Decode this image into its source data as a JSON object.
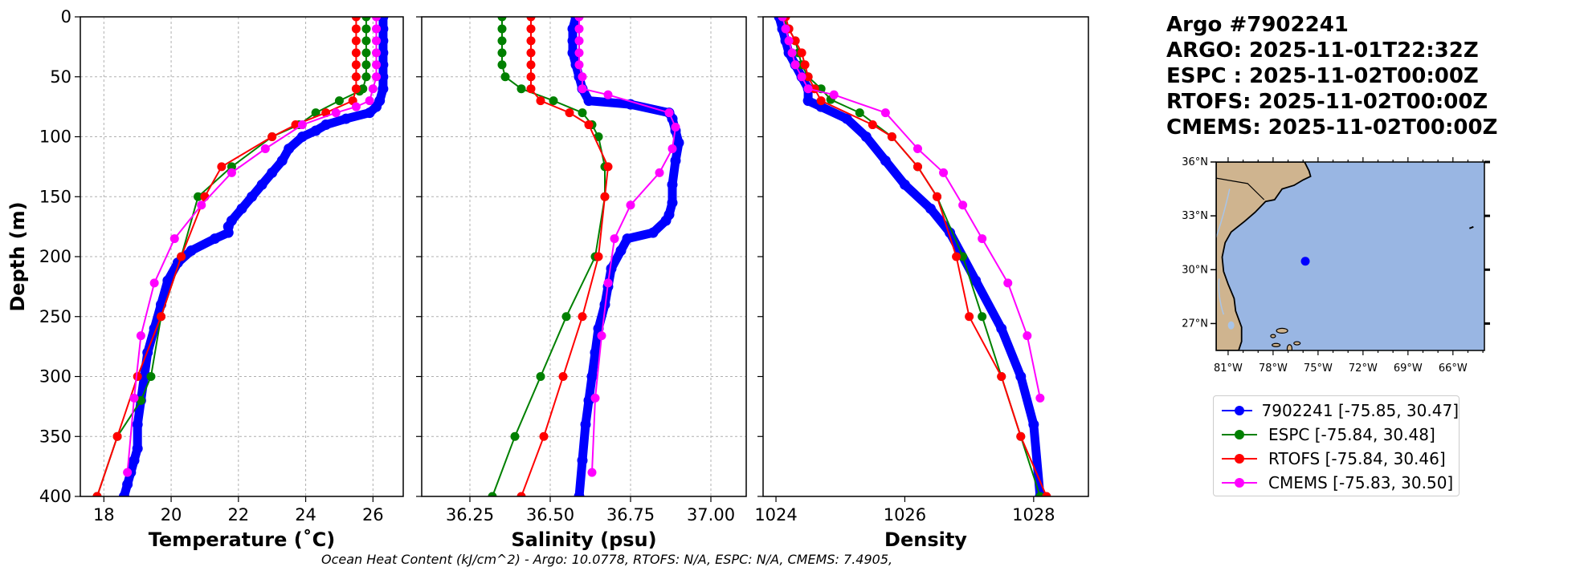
{
  "chart_data": [
    {
      "type": "line",
      "panel": "temperature",
      "xlabel": "Temperature (˚C)",
      "ylabel": "Depth (m)",
      "xlim": [
        17.3,
        26.9
      ],
      "ylim": [
        400,
        0
      ],
      "xticks": [
        18,
        20,
        22,
        24,
        26
      ],
      "yticks": [
        0,
        50,
        100,
        150,
        200,
        250,
        300,
        350,
        400
      ],
      "grid": true,
      "series": [
        {
          "name": "7902241 [-75.85, 30.47]",
          "color": "#0000ff",
          "x": [
            26.3,
            26.3,
            26.3,
            26.3,
            26.3,
            26.3,
            26.3,
            26.2,
            26.1,
            25.9,
            25.2,
            24.6,
            24.3,
            23.9,
            23.5,
            23.3,
            23.0,
            22.7,
            22.4,
            22.1,
            21.8,
            21.7,
            21.7,
            21.3,
            20.6,
            20.2,
            19.9,
            19.7,
            19.5,
            19.3,
            19.2,
            19.1,
            19.0,
            19.0,
            18.9,
            18.8,
            18.7,
            18.6
          ],
          "y": [
            0,
            10,
            20,
            30,
            40,
            50,
            60,
            70,
            75,
            80,
            85,
            90,
            95,
            100,
            110,
            120,
            130,
            140,
            150,
            160,
            170,
            175,
            180,
            185,
            195,
            205,
            220,
            240,
            260,
            280,
            300,
            320,
            340,
            360,
            370,
            380,
            390,
            400
          ]
        },
        {
          "name": "ESPC [-75.84, 30.48]",
          "color": "#008000",
          "x": [
            25.8,
            25.8,
            25.8,
            25.8,
            25.8,
            25.8,
            25.7,
            25.6,
            25.0,
            24.3,
            23.8,
            23.0,
            21.8,
            20.8,
            20.3,
            19.7,
            19.4,
            19.1,
            18.4,
            17.8
          ],
          "y": [
            0,
            10,
            20,
            30,
            40,
            50,
            60,
            62,
            70,
            80,
            90,
            100,
            125,
            150,
            200,
            250,
            300,
            320,
            350,
            400
          ]
        },
        {
          "name": "RTOFS [-75.84, 30.46]",
          "color": "#ff0000",
          "x": [
            25.5,
            25.5,
            25.5,
            25.5,
            25.5,
            25.5,
            25.5,
            25.4,
            24.6,
            23.7,
            23.0,
            21.5,
            21.0,
            20.3,
            19.7,
            19.0,
            18.4,
            17.8
          ],
          "y": [
            0,
            10,
            20,
            30,
            40,
            50,
            60,
            70,
            80,
            90,
            100,
            125,
            150,
            200,
            250,
            300,
            350,
            400
          ]
        },
        {
          "name": "CMEMS [-75.83, 30.50]",
          "color": "#ff00ff",
          "x": [
            26.1,
            26.1,
            26.1,
            26.1,
            26.1,
            26.1,
            26.0,
            25.9,
            25.5,
            24.9,
            23.9,
            22.8,
            21.8,
            20.9,
            20.1,
            19.5,
            19.1,
            18.9,
            18.7
          ],
          "y": [
            0,
            10,
            20,
            30,
            40,
            50,
            60,
            70,
            75,
            80,
            90,
            110,
            130,
            157,
            185,
            222,
            266,
            318,
            380
          ]
        }
      ]
    },
    {
      "type": "line",
      "panel": "salinity",
      "xlabel": "Salinity (psu)",
      "xlim": [
        36.1,
        37.11
      ],
      "ylim": [
        400,
        0
      ],
      "xticks": [
        "36.25",
        "36.50",
        "36.75",
        "37.00"
      ],
      "xtick_values": [
        36.25,
        36.5,
        36.75,
        37.0
      ],
      "grid": true,
      "series": [
        {
          "name": "7902241 [-75.85, 30.47]",
          "color": "#0000ff",
          "x": [
            36.58,
            36.57,
            36.57,
            36.57,
            36.58,
            36.59,
            36.6,
            36.62,
            36.75,
            36.87,
            36.88,
            36.89,
            36.9,
            36.89,
            36.88,
            36.88,
            36.87,
            36.86,
            36.82,
            36.74,
            36.72,
            36.69,
            36.68,
            36.67,
            36.65,
            36.64,
            36.63,
            36.62,
            36.61,
            36.6,
            36.59
          ],
          "y": [
            0,
            10,
            20,
            30,
            40,
            50,
            60,
            70,
            73,
            80,
            85,
            95,
            105,
            120,
            140,
            155,
            165,
            170,
            180,
            185,
            195,
            210,
            225,
            240,
            260,
            280,
            300,
            320,
            340,
            370,
            400
          ]
        },
        {
          "name": "ESPC [-75.84, 30.48]",
          "color": "#008000",
          "x": [
            36.35,
            36.35,
            36.35,
            36.35,
            36.35,
            36.36,
            36.41,
            36.51,
            36.6,
            36.63,
            36.65,
            36.67,
            36.67,
            36.64,
            36.55,
            36.47,
            36.39,
            36.32
          ],
          "y": [
            0,
            10,
            20,
            30,
            40,
            50,
            60,
            70,
            80,
            90,
            100,
            125,
            150,
            200,
            250,
            300,
            350,
            400
          ]
        },
        {
          "name": "RTOFS [-75.84, 30.46]",
          "color": "#ff0000",
          "x": [
            36.44,
            36.44,
            36.44,
            36.44,
            36.44,
            36.44,
            36.44,
            36.47,
            36.56,
            36.62,
            36.68,
            36.67,
            36.65,
            36.6,
            36.54,
            36.48,
            36.41
          ],
          "y": [
            0,
            10,
            20,
            30,
            40,
            50,
            60,
            70,
            80,
            90,
            125,
            150,
            200,
            250,
            300,
            350,
            400
          ]
        },
        {
          "name": "CMEMS [-75.83, 30.50]",
          "color": "#ff00ff",
          "x": [
            36.59,
            36.59,
            36.59,
            36.59,
            36.59,
            36.6,
            36.6,
            36.68,
            36.87,
            36.89,
            36.88,
            36.84,
            36.75,
            36.7,
            36.68,
            36.66,
            36.64,
            36.63
          ],
          "y": [
            0,
            10,
            20,
            30,
            40,
            50,
            60,
            65,
            80,
            92,
            110,
            130,
            157,
            185,
            222,
            266,
            318,
            380
          ]
        }
      ]
    },
    {
      "type": "line",
      "panel": "density",
      "xlabel": "Density",
      "xlim": [
        1023.8,
        1028.85
      ],
      "ylim": [
        400,
        0
      ],
      "xticks": [
        1024,
        1026,
        1028
      ],
      "grid": false,
      "series": [
        {
          "name": "7902241 [-75.85, 30.47]",
          "color": "#0000ff",
          "x": [
            1024.05,
            1024.1,
            1024.15,
            1024.2,
            1024.3,
            1024.4,
            1024.5,
            1024.5,
            1024.7,
            1025.1,
            1025.4,
            1025.7,
            1026.0,
            1026.4,
            1026.7,
            1027.1,
            1027.5,
            1027.8,
            1028.0,
            1028.1
          ],
          "y": [
            0,
            10,
            20,
            30,
            40,
            50,
            60,
            70,
            75,
            85,
            100,
            120,
            140,
            160,
            180,
            220,
            260,
            300,
            340,
            400
          ]
        },
        {
          "name": "ESPC [-75.84, 30.48]",
          "color": "#008000",
          "x": [
            1024.1,
            1024.2,
            1024.3,
            1024.35,
            1024.4,
            1024.5,
            1024.7,
            1024.85,
            1025.3,
            1025.8,
            1026.2,
            1026.5,
            1026.9,
            1027.2,
            1027.5,
            1027.8,
            1028.1
          ],
          "y": [
            0,
            10,
            20,
            30,
            40,
            50,
            60,
            69,
            80,
            100,
            125,
            150,
            200,
            250,
            300,
            350,
            400
          ]
        },
        {
          "name": "RTOFS [-75.84, 30.46]",
          "color": "#ff0000",
          "x": [
            1024.15,
            1024.2,
            1024.3,
            1024.4,
            1024.45,
            1024.5,
            1024.6,
            1024.7,
            1025.5,
            1025.8,
            1026.2,
            1026.5,
            1026.8,
            1027.0,
            1027.5,
            1027.8,
            1028.2
          ],
          "y": [
            0,
            10,
            20,
            30,
            40,
            50,
            60,
            70,
            90,
            100,
            125,
            150,
            200,
            250,
            300,
            350,
            400
          ]
        },
        {
          "name": "CMEMS [-75.83, 30.50]",
          "color": "#ff00ff",
          "x": [
            1024.1,
            1024.15,
            1024.2,
            1024.25,
            1024.3,
            1024.4,
            1024.5,
            1024.9,
            1025.7,
            1026.2,
            1026.6,
            1026.9,
            1027.2,
            1027.6,
            1027.9,
            1028.1
          ],
          "y": [
            0,
            10,
            20,
            30,
            40,
            50,
            60,
            65,
            80,
            110,
            130,
            157,
            185,
            222,
            266,
            318
          ]
        }
      ]
    }
  ],
  "header": {
    "title_lines": [
      "Argo #7902241",
      "ARGO: 2025-11-01T22:32Z",
      "ESPC : 2025-11-02T00:00Z",
      "RTOFS: 2025-11-02T00:00Z",
      "CMEMS: 2025-11-02T00:00Z"
    ]
  },
  "legend": {
    "entries": [
      {
        "label": "7902241 [-75.85, 30.47]",
        "color": "#0000ff"
      },
      {
        "label": "ESPC [-75.84, 30.48]",
        "color": "#008000"
      },
      {
        "label": "RTOFS [-75.84, 30.46]",
        "color": "#ff0000"
      },
      {
        "label": "CMEMS [-75.83, 30.50]",
        "color": "#ff00ff"
      }
    ]
  },
  "map": {
    "lon_labels": [
      "81°W",
      "78°W",
      "75°W",
      "72°W",
      "69°W",
      "66°W"
    ],
    "lon_values": [
      -81,
      -78,
      -75,
      -72,
      -69,
      -66
    ],
    "lat_labels": [
      "36°N",
      "33°N",
      "30°N",
      "27°N"
    ],
    "lat_values": [
      36,
      33,
      30,
      27
    ],
    "lon_range": [
      -81.8,
      -63.9
    ],
    "lat_range": [
      25.5,
      36.0
    ],
    "float_lon": -75.85,
    "float_lat": 30.47,
    "ocean_color": "#99b6e3",
    "land_color": "#cfb48f",
    "float_color": "#0000ff"
  },
  "footer": {
    "text": "Ocean Heat Content (kJ/cm^2) - Argo: 10.0778,  RTOFS: N/A,  ESPC: N/A,  CMEMS: 7.4905,"
  }
}
